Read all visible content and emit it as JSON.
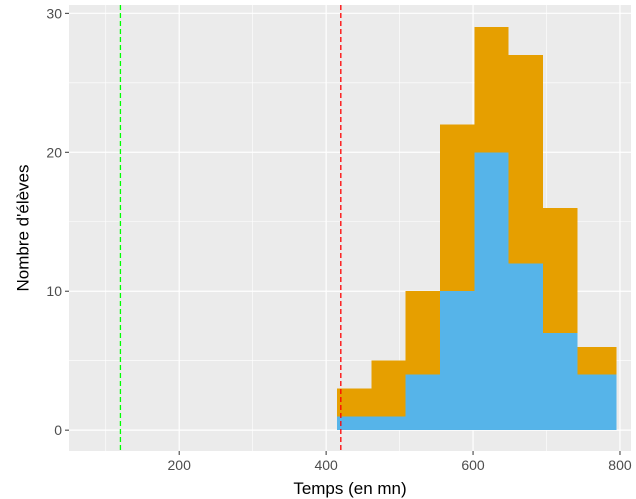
{
  "chart_data": {
    "type": "bar",
    "subtype": "stacked-histogram",
    "title": "",
    "xlabel": "Temps (en mn)",
    "ylabel": "Nombre d'élèves",
    "xlim": [
      50,
      815
    ],
    "ylim": [
      -1.5,
      30.6
    ],
    "x_ticks": [
      200,
      400,
      600,
      800
    ],
    "y_ticks": [
      0,
      10,
      20,
      30
    ],
    "x_tick_labels": [
      "200",
      "400",
      "600",
      "800"
    ],
    "y_tick_labels": [
      "0",
      "10",
      "20",
      "30"
    ],
    "bins": [
      [
        415,
        462
      ],
      [
        462,
        508
      ],
      [
        508,
        555
      ],
      [
        555,
        602
      ],
      [
        602,
        648
      ],
      [
        648,
        695
      ],
      [
        695,
        742
      ],
      [
        742,
        795
      ]
    ],
    "series": [
      {
        "color": "#56B4E9",
        "values": [
          1,
          1,
          4,
          10,
          20,
          12,
          7,
          4
        ]
      },
      {
        "color": "#E69F00",
        "values": [
          2,
          4,
          6,
          12,
          9,
          15,
          9,
          2
        ]
      }
    ],
    "totals": [
      3,
      5,
      10,
      22,
      29,
      27,
      16,
      6
    ],
    "reference_lines": [
      {
        "x": 120,
        "color": "#00FF00",
        "style": "dashed"
      },
      {
        "x": 420,
        "color": "#FF0000",
        "style": "dashed"
      }
    ],
    "grid": true,
    "panel_background": "#EBEBEB",
    "grid_color": "#FFFFFF",
    "legend": "none"
  }
}
